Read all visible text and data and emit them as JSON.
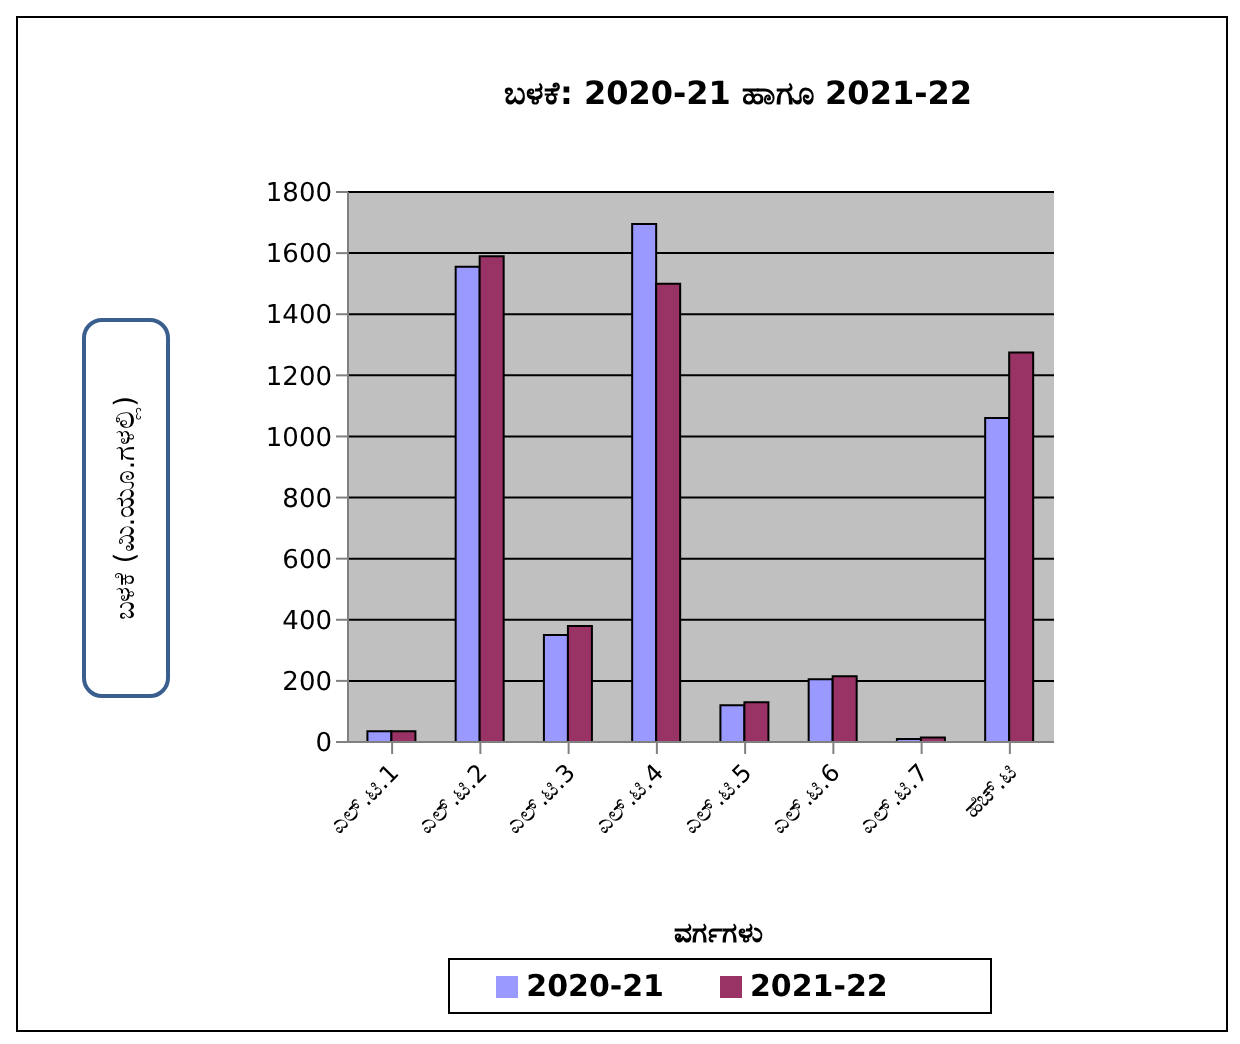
{
  "chart_data": {
    "type": "bar",
    "title": "ಬಳಕೆ: 2020-21 ಹಾಗೂ 2021-22",
    "xlabel": "ವರ್ಗಗಳು",
    "ylabel": "ಬಳಕೆ (ಮಿ.ಯೂ.ಗಳಲ್ಲಿ)",
    "categories": [
      "ಎಲ್.ಟಿ.1",
      "ಎಲ್.ಟಿ.2",
      "ಎಲ್.ಟಿ.3",
      "ಎಲ್.ಟಿ.4",
      "ಎಲ್.ಟಿ.5",
      "ಎಲ್.ಟಿ.6",
      "ಎಲ್.ಟಿ.7",
      "ಹೆಚ್.ಟಿ"
    ],
    "series": [
      {
        "name": "2020-21",
        "color": "#9999ff",
        "values": [
          35,
          1555,
          350,
          1695,
          120,
          205,
          10,
          1060
        ]
      },
      {
        "name": "2021-22",
        "color": "#993366",
        "values": [
          35,
          1590,
          380,
          1500,
          130,
          215,
          15,
          1275
        ]
      }
    ],
    "ylim": [
      0,
      1800
    ],
    "yticks": [
      0,
      200,
      400,
      600,
      800,
      1000,
      1200,
      1400,
      1600,
      1800
    ],
    "grid": "y",
    "legend": "bottom"
  }
}
